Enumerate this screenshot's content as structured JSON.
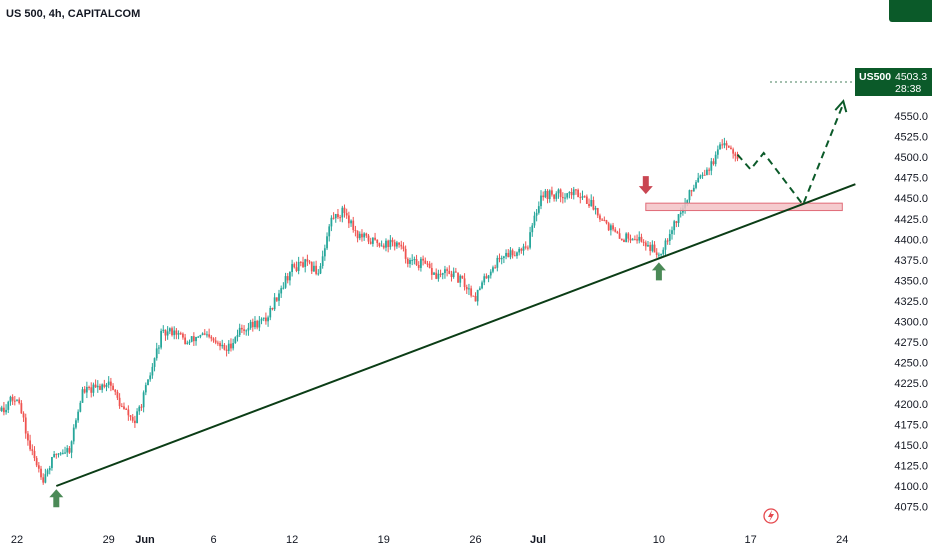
{
  "header": {
    "symbol_line": "US 500, 4h, CAPITALCOM"
  },
  "price_badge": {
    "symbol": "US500",
    "price": "4503.3",
    "countdown": "28:38"
  },
  "colors": {
    "up": "#26a69a",
    "down": "#ef5350",
    "trendline": "#0b3d16",
    "projection": "#0b5a29",
    "zone_fill": "#f3c2c6",
    "zone_border": "#e06b77",
    "up_arrow": "#4b8a57",
    "down_arrow": "#c94652",
    "badge": "#0b5a29"
  },
  "chart_data": {
    "type": "candlestick",
    "title": "US 500, 4h, CAPITALCOM",
    "y_ticks": [
      "4075.0",
      "4100.0",
      "4125.0",
      "4150.0",
      "4175.0",
      "4200.0",
      "4225.0",
      "4250.0",
      "4275.0",
      "4300.0",
      "4325.0",
      "4350.0",
      "4375.0",
      "4400.0",
      "4425.0",
      "4450.0",
      "4475.0",
      "4500.0",
      "4525.0",
      "4550.0"
    ],
    "x_ticks": [
      "22",
      "29",
      "Jun",
      "6",
      "12",
      "19",
      "26",
      "Jul",
      "10",
      "17",
      "24"
    ],
    "ylim": [
      4065,
      4575
    ],
    "grid": false,
    "waypoints": [
      {
        "d": "May 18",
        "p": 4205
      },
      {
        "d": "May 19",
        "p": 4215
      },
      {
        "d": "May 20",
        "p": 4200
      },
      {
        "d": "May 21",
        "p": 4195
      },
      {
        "d": "May 22",
        "p": 4210
      },
      {
        "d": "May 23",
        "p": 4145
      },
      {
        "d": "May 24",
        "p": 4110
      },
      {
        "d": "May 25",
        "p": 4140
      },
      {
        "d": "May 26",
        "p": 4145
      },
      {
        "d": "May 27",
        "p": 4215
      },
      {
        "d": "May 28",
        "p": 4218
      },
      {
        "d": "May 29",
        "p": 4228
      },
      {
        "d": "May 30",
        "p": 4195
      },
      {
        "d": "May 31",
        "p": 4178
      },
      {
        "d": "Jun 1",
        "p": 4225
      },
      {
        "d": "Jun 2",
        "p": 4283
      },
      {
        "d": "Jun 3",
        "p": 4290
      },
      {
        "d": "Jun 4",
        "p": 4273
      },
      {
        "d": "Jun 5",
        "p": 4285
      },
      {
        "d": "Jun 7",
        "p": 4265
      },
      {
        "d": "Jun 8",
        "p": 4290
      },
      {
        "d": "Jun 10",
        "p": 4302
      },
      {
        "d": "Jun 11",
        "p": 4337
      },
      {
        "d": "Jun 12",
        "p": 4365
      },
      {
        "d": "Jun 13",
        "p": 4370
      },
      {
        "d": "Jun 14",
        "p": 4360
      },
      {
        "d": "Jun 15",
        "p": 4425
      },
      {
        "d": "Jun 16",
        "p": 4435
      },
      {
        "d": "Jun 17",
        "p": 4405
      },
      {
        "d": "Jun 18",
        "p": 4398
      },
      {
        "d": "Jun 19",
        "p": 4395
      },
      {
        "d": "Jun 20",
        "p": 4395
      },
      {
        "d": "Jun 21",
        "p": 4372
      },
      {
        "d": "Jun 22",
        "p": 4370
      },
      {
        "d": "Jun 23",
        "p": 4355
      },
      {
        "d": "Jun 24",
        "p": 4360
      },
      {
        "d": "Jun 25",
        "p": 4348
      },
      {
        "d": "Jun 26",
        "p": 4330
      },
      {
        "d": "Jun 27",
        "p": 4360
      },
      {
        "d": "Jun 28",
        "p": 4380
      },
      {
        "d": "Jun 29",
        "p": 4385
      },
      {
        "d": "Jun 30",
        "p": 4395
      },
      {
        "d": "Jul 1",
        "p": 4455
      },
      {
        "d": "Jul 2",
        "p": 4454
      },
      {
        "d": "Jul 3",
        "p": 4456
      },
      {
        "d": "Jul 4",
        "p": 4456
      },
      {
        "d": "Jul 5",
        "p": 4440
      },
      {
        "d": "Jul 6",
        "p": 4420
      },
      {
        "d": "Jul 7",
        "p": 4400
      },
      {
        "d": "Jul 8",
        "p": 4405
      },
      {
        "d": "Jul 9",
        "p": 4395
      },
      {
        "d": "Jul 10",
        "p": 4382
      },
      {
        "d": "Jul 11",
        "p": 4415
      },
      {
        "d": "Jul 12",
        "p": 4442
      },
      {
        "d": "Jul 13",
        "p": 4478
      },
      {
        "d": "Jul 14",
        "p": 4490
      },
      {
        "d": "Jul 15",
        "p": 4520
      },
      {
        "d": "Jul 16",
        "p": 4503
      }
    ],
    "annotations": {
      "trendline": [
        {
          "d": "May 25",
          "p": 4100
        },
        {
          "d": "Jul 25",
          "p": 4467
        }
      ],
      "resistance_zone": {
        "d_start": "Jul 9",
        "d_end": "Jul 24",
        "p_low": 4435,
        "p_high": 4444
      },
      "projection": [
        {
          "d": "Jul 16",
          "p": 4503
        },
        {
          "d": "Jul 17",
          "p": 4485
        },
        {
          "d": "Jul 18",
          "p": 4505
        },
        {
          "d": "Jul 21",
          "p": 4442
        },
        {
          "d": "Jul 24",
          "p": 4562
        }
      ],
      "up_arrows": [
        {
          "d": "May 25",
          "p": 4096
        },
        {
          "d": "Jul 10",
          "p": 4372
        }
      ],
      "down_arrows": [
        {
          "d": "Jul 9",
          "p": 4455
        }
      ]
    }
  }
}
